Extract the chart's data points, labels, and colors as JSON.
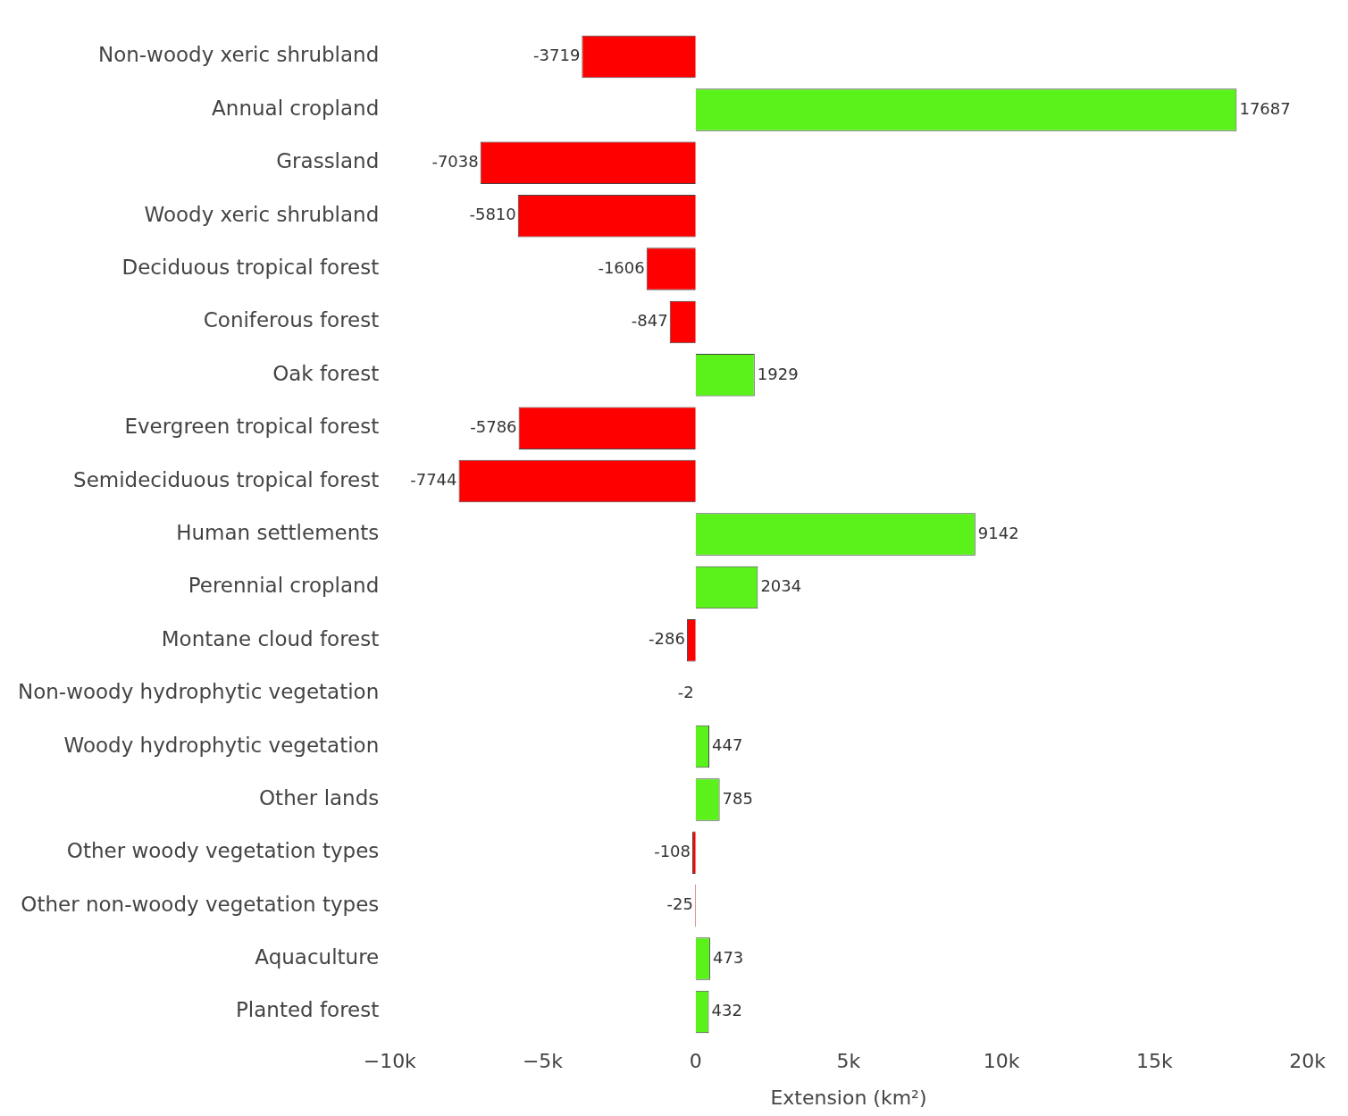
{
  "chart_data": {
    "type": "bar",
    "orientation": "horizontal",
    "xlabel": "Extension (km²)",
    "categories": [
      "Non-woody xeric shrubland",
      "Annual cropland",
      "Grassland",
      "Woody xeric shrubland",
      "Deciduous tropical forest",
      "Coniferous forest",
      "Oak forest",
      "Evergreen tropical forest",
      "Semideciduous tropical forest",
      "Human settlements",
      "Perennial cropland",
      "Montane cloud forest",
      "Non-woody hydrophytic vegetation",
      "Woody hydrophytic vegetation",
      "Other lands",
      "Other woody vegetation types",
      "Other non-woody vegetation types",
      "Aquaculture",
      "Planted forest"
    ],
    "values": [
      -3719,
      17687,
      -7038,
      -5810,
      -1606,
      -847,
      1929,
      -5786,
      -7744,
      9142,
      2034,
      -286,
      -2,
      447,
      785,
      -108,
      -25,
      473,
      432
    ],
    "colors": [
      "#ff0000",
      "#5af21a",
      "#ff0000",
      "#ff0000",
      "#ff0000",
      "#ff0000",
      "#5af21a",
      "#ff0000",
      "#ff0000",
      "#5af21a",
      "#5af21a",
      "#ff0000",
      "#ff0000",
      "#5af21a",
      "#5af21a",
      "#ff0000",
      "#ff0000",
      "#5af21a",
      "#5af21a"
    ],
    "xlim": [
      -10000,
      20000
    ],
    "xticks": [
      {
        "value": -10000,
        "label": "−10k"
      },
      {
        "value": -5000,
        "label": "−5k"
      },
      0,
      {
        "value": 5000,
        "label": "5k"
      },
      {
        "value": 10000,
        "label": "10k"
      },
      {
        "value": 15000,
        "label": "15k"
      },
      {
        "value": 20000,
        "label": "20k"
      }
    ],
    "data_labels": true,
    "grid": false,
    "legend": false
  }
}
